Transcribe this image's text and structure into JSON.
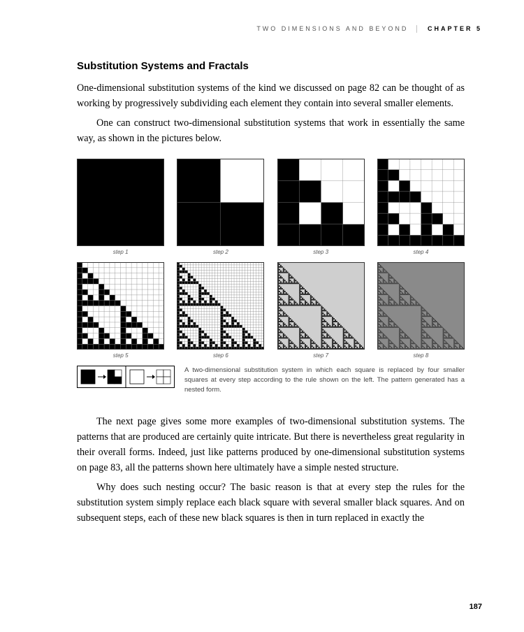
{
  "header": {
    "running": "TWO DIMENSIONS AND BEYOND",
    "chapter_label": "CHAPTER 5"
  },
  "section_title": "Substitution Systems and Fractals",
  "para1": "One-dimensional substitution systems of the kind we discussed on page 82 can be thought of as working by progressively subdividing each element they contain into several smaller elements.",
  "para2": "One can construct two-dimensional substitution systems that work in essentially the same way, as shown in the pictures below.",
  "steps": [
    {
      "label": "step 1",
      "n": 1,
      "fg": "#000000",
      "bg": "#ffffff",
      "grid": "#888888"
    },
    {
      "label": "step 2",
      "n": 2,
      "fg": "#000000",
      "bg": "#ffffff",
      "grid": "#888888"
    },
    {
      "label": "step 3",
      "n": 4,
      "fg": "#000000",
      "bg": "#ffffff",
      "grid": "#888888"
    },
    {
      "label": "step 4",
      "n": 8,
      "fg": "#000000",
      "bg": "#ffffff",
      "grid": "#888888"
    },
    {
      "label": "step 5",
      "n": 16,
      "fg": "#000000",
      "bg": "#ffffff",
      "grid": "#888888"
    },
    {
      "label": "step 6",
      "n": 32,
      "fg": "#000000",
      "bg": "#ffffff",
      "grid": "#888888"
    },
    {
      "label": "step 7",
      "n": 64,
      "fg": "#222222",
      "bg": "#cfcfcf",
      "grid": "#bfbfbf"
    },
    {
      "label": "step 8",
      "n": 128,
      "fg": "#333333",
      "bg": "#8a8a8a",
      "grid": "#8a8a8a"
    }
  ],
  "rule": {
    "black": "#000000",
    "white": "#ffffff",
    "border": "#000000"
  },
  "caption": "A two-dimensional substitution system in which each square is replaced by four smaller squares at every step according to the rule shown on the left. The pattern generated has a nested form.",
  "para3": "The next page gives some more examples of two-dimensional substitution systems. The patterns that are produced are certainly quite intricate. But there is nevertheless great regularity in their overall forms. Indeed, just like patterns produced by one-dimensional substitution systems on page 83, all the patterns shown here ultimately have a simple nested structure.",
  "para4": "Why does such nesting occur? The basic reason is that at every step the rules for the substitution system simply replace each black square with several smaller black squares. And on subsequent steps, each of these new black squares is then in turn replaced in exactly the",
  "page_number": "187"
}
